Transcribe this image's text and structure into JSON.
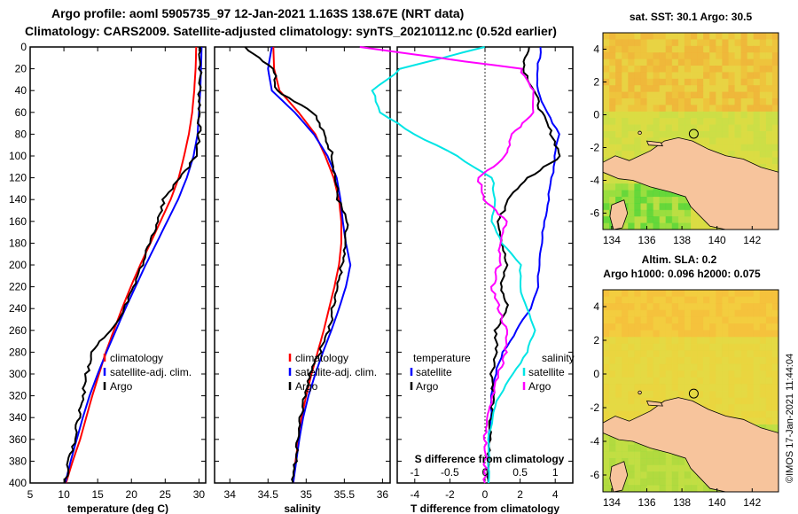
{
  "header": {
    "title_line1": "Argo profile: aoml 5905735_97 12-Jan-2021 1.163S 138.67E (NRT data)",
    "title_line2": "Climatology: CARS2009. Satellite-adjusted climatology: synTS_20210112.nc (0.52d earlier)"
  },
  "colors": {
    "climatology": "#ff0000",
    "satellite": "#0000ff",
    "argo": "#000000",
    "cyan": "#00e5e5",
    "magenta": "#ff00ff",
    "land": "#f7c49c",
    "sea_warm": "#f0d040"
  },
  "chart_data": [
    {
      "type": "line",
      "name": "temperature-profile",
      "xlabel": "temperature (deg C)",
      "xlim": [
        5,
        31
      ],
      "ylim": [
        400,
        0
      ],
      "xticks": [
        5,
        10,
        15,
        20,
        25,
        30
      ],
      "yticks": [
        0,
        20,
        40,
        60,
        80,
        100,
        120,
        140,
        160,
        180,
        200,
        220,
        240,
        260,
        280,
        300,
        320,
        340,
        360,
        380,
        400
      ],
      "legend": [
        "climatology",
        "satellite-adj. clim.",
        "Argo"
      ],
      "series": [
        {
          "name": "climatology",
          "x": [
            29.6,
            29.5,
            29.3,
            29.0,
            28.5,
            27.8,
            27.0,
            25.8,
            24.3,
            22.8,
            21.3,
            19.9,
            18.6,
            17.4,
            16.2,
            15.2,
            14.2,
            13.3,
            12.4,
            11.3,
            10.3
          ],
          "y": [
            0,
            20,
            40,
            60,
            80,
            100,
            120,
            140,
            160,
            180,
            200,
            220,
            240,
            260,
            280,
            300,
            320,
            340,
            360,
            380,
            400
          ]
        },
        {
          "name": "satellite-adj. clim.",
          "x": [
            30.4,
            30.3,
            30.2,
            30.0,
            29.8,
            29.2,
            28.2,
            26.9,
            25.3,
            23.7,
            22.1,
            20.6,
            19.1,
            17.7,
            16.3,
            15.0,
            13.8,
            12.8,
            11.9,
            11.0,
            10.2
          ],
          "y": [
            0,
            20,
            40,
            60,
            80,
            100,
            120,
            140,
            160,
            180,
            200,
            220,
            240,
            260,
            280,
            300,
            320,
            340,
            360,
            380,
            400
          ]
        },
        {
          "name": "Argo",
          "x": [
            30.2,
            30.2,
            30.1,
            30.1,
            30.0,
            29.6,
            27.2,
            24.8,
            23.9,
            22.8,
            21.5,
            20.3,
            19.0,
            16.8,
            14.2,
            13.4,
            12.8,
            12.2,
            11.6,
            10.8,
            10.2
          ],
          "y": [
            0,
            20,
            40,
            60,
            80,
            100,
            120,
            140,
            160,
            180,
            200,
            220,
            240,
            260,
            280,
            300,
            320,
            340,
            360,
            380,
            400
          ]
        }
      ]
    },
    {
      "type": "line",
      "name": "salinity-profile",
      "xlabel": "salinity",
      "xlim": [
        33.8,
        36.1
      ],
      "ylim": [
        400,
        0
      ],
      "xticks": [
        34,
        34.5,
        35,
        35.5,
        36
      ],
      "legend": [
        "climatology",
        "satellite-adj. clim.",
        "Argo"
      ],
      "series": [
        {
          "name": "climatology",
          "x": [
            34.57,
            34.58,
            34.65,
            34.9,
            35.12,
            35.25,
            35.36,
            35.43,
            35.46,
            35.46,
            35.43,
            35.37,
            35.3,
            35.23,
            35.15,
            35.07,
            35.0,
            34.94,
            34.9,
            34.86,
            34.83
          ],
          "y": [
            0,
            20,
            40,
            60,
            80,
            100,
            120,
            140,
            160,
            180,
            200,
            220,
            240,
            260,
            280,
            300,
            320,
            340,
            360,
            380,
            400
          ]
        },
        {
          "name": "satellite-adj. clim.",
          "x": [
            34.55,
            34.5,
            34.55,
            34.85,
            35.1,
            35.28,
            35.4,
            35.45,
            35.48,
            35.52,
            35.58,
            35.52,
            35.43,
            35.33,
            35.22,
            35.12,
            35.03,
            34.96,
            34.91,
            34.87,
            34.83
          ],
          "y": [
            0,
            20,
            40,
            60,
            80,
            100,
            120,
            140,
            160,
            180,
            200,
            220,
            240,
            260,
            280,
            300,
            320,
            340,
            360,
            380,
            400
          ]
        },
        {
          "name": "Argo",
          "x": [
            34.2,
            34.58,
            34.62,
            35.1,
            35.23,
            35.35,
            35.38,
            35.42,
            35.53,
            35.5,
            35.47,
            35.4,
            35.35,
            35.3,
            35.18,
            35.05,
            34.98,
            34.93,
            34.9,
            34.86,
            34.83
          ],
          "y": [
            0,
            20,
            40,
            60,
            80,
            100,
            120,
            140,
            160,
            180,
            200,
            220,
            240,
            260,
            280,
            300,
            320,
            340,
            360,
            380,
            400
          ]
        }
      ]
    },
    {
      "type": "line",
      "name": "difference-profile",
      "xlabel": "T difference from climatology",
      "xlabel_top": "S difference from climatology",
      "xlim": [
        -5,
        5
      ],
      "ylim": [
        400,
        0
      ],
      "xticks": [
        -4,
        -2,
        0,
        2,
        4
      ],
      "xticks_top": [
        -1,
        -0.5,
        0,
        0.5,
        1
      ],
      "legend_left_title": "temperature",
      "legend_right_title": "salinity",
      "legend_left": [
        "satellite",
        "Argo"
      ],
      "legend_right": [
        "satellite",
        "Argo"
      ],
      "series": [
        {
          "name": "temperature satellite",
          "x": [
            3.2,
            3.0,
            3.0,
            3.5,
            4.2,
            4.0,
            3.8,
            3.6,
            3.4,
            3.2,
            3.1,
            3.0,
            2.6,
            1.8,
            1.0,
            0.6,
            0.4,
            0.3,
            0.25,
            0.2,
            0.2
          ],
          "y": [
            0,
            20,
            40,
            60,
            80,
            100,
            120,
            140,
            160,
            180,
            200,
            220,
            240,
            260,
            280,
            300,
            320,
            340,
            360,
            380,
            400
          ]
        },
        {
          "name": "temperature Argo",
          "x": [
            2.5,
            2.2,
            2.8,
            3.2,
            3.8,
            4.3,
            2.5,
            1.3,
            0.8,
            1.0,
            1.2,
            0.9,
            1.3,
            0.6,
            0.7,
            0.4,
            0.5,
            0.3,
            0.25,
            0.2,
            0.2
          ],
          "y": [
            0,
            20,
            40,
            60,
            80,
            100,
            120,
            140,
            160,
            180,
            200,
            220,
            240,
            260,
            280,
            300,
            320,
            340,
            360,
            380,
            400
          ]
        },
        {
          "name": "salinity satellite",
          "x": [
            -0.0,
            -1.2,
            -1.6,
            -1.5,
            -1.0,
            -0.4,
            0.1,
            0.15,
            0.1,
            0.25,
            0.5,
            0.5,
            0.6,
            0.7,
            0.6,
            0.4,
            0.2,
            0.1,
            0.05,
            0.05,
            0.05
          ],
          "y": [
            0,
            20,
            40,
            60,
            80,
            100,
            120,
            140,
            160,
            180,
            200,
            220,
            240,
            260,
            280,
            300,
            320,
            340,
            360,
            380,
            400
          ]
        },
        {
          "name": "salinity Argo",
          "x": [
            -1.8,
            0.5,
            0.7,
            0.7,
            0.4,
            0.3,
            -0.1,
            0.0,
            0.3,
            0.2,
            0.2,
            0.1,
            0.2,
            0.3,
            0.3,
            0.2,
            0.1,
            0.05,
            0.0,
            0.0,
            0.0
          ],
          "y": [
            0,
            20,
            40,
            60,
            80,
            100,
            120,
            140,
            160,
            180,
            200,
            220,
            240,
            260,
            280,
            300,
            320,
            340,
            360,
            380,
            400
          ]
        }
      ]
    },
    {
      "type": "heatmap",
      "name": "sst-map",
      "title": "sat. SST: 30.1  Argo: 30.5",
      "xticks": [
        134,
        136,
        138,
        140,
        142
      ],
      "yticks": [
        4,
        2,
        0,
        -2,
        -4,
        -6
      ],
      "xlim": [
        133.5,
        143.5
      ],
      "ylim": [
        -7,
        5
      ],
      "argo_position": [
        138.67,
        -1.163
      ]
    },
    {
      "type": "heatmap",
      "name": "sla-map",
      "title": "Altim. SLA: 0.2",
      "subtitle": "Argo h1000: 0.096  h2000: 0.075",
      "xticks": [
        134,
        136,
        138,
        140,
        142
      ],
      "yticks": [
        4,
        2,
        0,
        -2,
        -4,
        -6
      ],
      "xlim": [
        133.5,
        143.5
      ],
      "ylim": [
        -7,
        5
      ],
      "argo_position": [
        138.67,
        -1.163
      ]
    }
  ],
  "footer": {
    "credit": "©IMOS 17-Jan-2021 11:44:04"
  }
}
